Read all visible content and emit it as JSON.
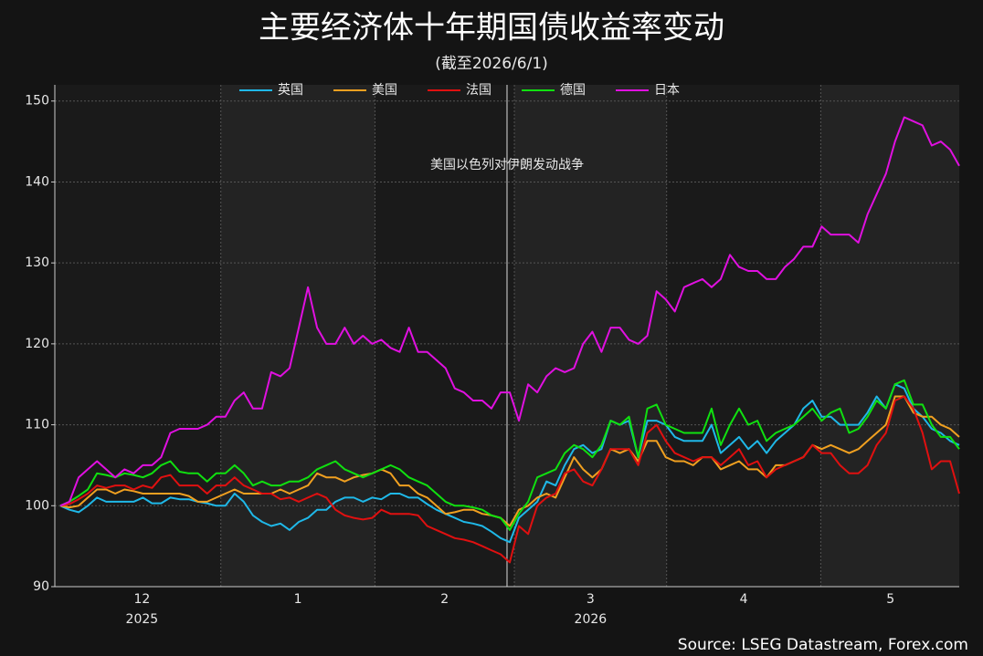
{
  "chart_data": {
    "type": "line",
    "title": "主要经济体十年期国债收益率变动",
    "subtitle": "(截至2026/6/1)",
    "source": "Source: LSEG Datastream, Forex.com",
    "legend": "top",
    "grid": true,
    "categories": [
      null,
      null,
      null,
      null,
      null,
      null,
      null,
      null,
      null,
      null,
      null,
      null,
      null,
      null,
      null,
      null,
      null,
      null,
      null,
      null,
      null,
      null,
      null,
      null,
      null,
      null,
      null,
      null,
      null,
      null,
      null,
      null,
      null,
      null,
      null,
      null,
      null,
      null,
      null,
      null,
      null,
      null,
      null,
      null,
      null,
      null,
      null,
      null,
      null,
      null,
      null,
      null,
      null,
      null,
      null,
      null,
      null,
      null,
      null,
      null,
      null,
      null,
      null,
      null,
      null,
      null,
      null,
      null,
      null,
      null,
      null,
      null,
      null,
      null,
      null,
      null,
      null,
      null,
      null,
      null,
      null,
      null,
      null,
      null,
      null,
      null,
      null,
      null,
      null,
      null,
      null,
      null,
      null,
      null,
      null,
      null,
      null,
      null,
      null
    ],
    "xticks": [
      {
        "value": 8.9,
        "label": "12"
      },
      {
        "value": 25.9,
        "label": "1"
      },
      {
        "value": 41.9,
        "label": "2"
      },
      {
        "value": 57.8,
        "label": "3"
      },
      {
        "value": 74.5,
        "label": "4"
      },
      {
        "value": 90.5,
        "label": "5"
      }
    ],
    "x_year_labels": [
      {
        "value": 8.9,
        "label": "2025"
      },
      {
        "value": 57.8,
        "label": "2026"
      }
    ],
    "month_bounds": [
      17.5,
      34.3,
      49.5,
      66.1,
      82.9
    ],
    "annotation": {
      "x": 48.7,
      "text": "美国以色列对伊朗发动战争"
    },
    "ylim": [
      90,
      152
    ],
    "yticks": [
      90,
      100,
      110,
      120,
      130,
      140,
      150
    ],
    "series": [
      {
        "name": "英国",
        "color": "#1fb8e8",
        "values": [
          100,
          99.5,
          99.2,
          100,
          101,
          100.5,
          100.5,
          100.5,
          100.5,
          101,
          100.3,
          100.3,
          101,
          100.8,
          100.8,
          100.5,
          100.3,
          100,
          100,
          101.5,
          100.5,
          98.8,
          98,
          97.5,
          97.8,
          97,
          98,
          98.5,
          99.5,
          99.5,
          100.5,
          101,
          101,
          100.5,
          101,
          100.8,
          101.5,
          101.5,
          101,
          101,
          100.2,
          99.5,
          99,
          98.5,
          98,
          97.8,
          97.5,
          96.8,
          96,
          95.5,
          98.5,
          99.5,
          100.5,
          103,
          102.5,
          105,
          107,
          107.5,
          106.5,
          107,
          110.5,
          110,
          110.5,
          106,
          110.5,
          110.5,
          110,
          108.5,
          108,
          108,
          108,
          110,
          106.5,
          107.5,
          108.5,
          107,
          108,
          106.5,
          108,
          109,
          110,
          112,
          113,
          111,
          111,
          110,
          110,
          110,
          111.5,
          113.5,
          112,
          115,
          114.5,
          112,
          111,
          109.5,
          109,
          108,
          107.5
        ]
      },
      {
        "name": "美国",
        "color": "#f0a020",
        "values": [
          100,
          99.8,
          100,
          101,
          102,
          102,
          101.5,
          102,
          101.8,
          101.5,
          101.5,
          101.5,
          101.5,
          101.5,
          101.2,
          100.5,
          100.5,
          101,
          101.5,
          102,
          101.5,
          101.5,
          101.5,
          101.5,
          102,
          101.5,
          102,
          102.5,
          104,
          103.5,
          103.5,
          103,
          103.5,
          103.8,
          104,
          104.5,
          104,
          102.5,
          102.5,
          101.5,
          101,
          100,
          99,
          99.2,
          99.5,
          99.5,
          99,
          98.8,
          98.5,
          97.5,
          99.5,
          100,
          101,
          101.5,
          101,
          103.5,
          106,
          104.5,
          103.5,
          104.5,
          107,
          106.5,
          107,
          105.5,
          108,
          108,
          106,
          105.5,
          105.5,
          105,
          106,
          106,
          104.5,
          105,
          105.5,
          104.5,
          104.5,
          103.5,
          105,
          105,
          105.5,
          106,
          107.5,
          107,
          107.5,
          107,
          106.5,
          107,
          108,
          109,
          110,
          113.5,
          113.5,
          111.5,
          111,
          111,
          110,
          109.5,
          108.5
        ]
      },
      {
        "name": "法国",
        "color": "#e01010",
        "values": [
          100,
          100.2,
          100.8,
          101.5,
          102.5,
          102.2,
          102.5,
          102.5,
          102,
          102.5,
          102.2,
          103.5,
          103.8,
          102.5,
          102.5,
          102.5,
          101.5,
          102.5,
          102.5,
          103.5,
          102.5,
          102,
          101.5,
          101.5,
          100.8,
          101,
          100.5,
          101,
          101.5,
          101,
          99.5,
          98.8,
          98.5,
          98.3,
          98.5,
          99.5,
          99,
          99,
          99,
          98.8,
          97.5,
          97,
          96.5,
          96,
          95.8,
          95.5,
          95,
          94.5,
          94,
          93,
          97.5,
          96.5,
          100,
          101,
          101.5,
          104,
          104.5,
          103,
          102.5,
          104.5,
          107,
          107,
          107,
          105,
          109,
          110,
          108,
          106.5,
          106,
          105.5,
          106,
          106,
          105,
          106,
          107,
          105,
          105.5,
          103.5,
          104.5,
          105,
          105.5,
          106,
          107.5,
          106.5,
          106.5,
          105,
          104,
          104,
          105,
          107.5,
          109,
          113,
          113.5,
          112,
          109,
          104.5,
          105.5,
          105.5,
          101.5
        ]
      },
      {
        "name": "德国",
        "color": "#10e010",
        "values": [
          100,
          100.5,
          101.2,
          102,
          104,
          103.8,
          103.5,
          104,
          103.8,
          103.5,
          104,
          105,
          105.5,
          104.2,
          104,
          104,
          103,
          104,
          104,
          105,
          104,
          102.5,
          103,
          102.5,
          102.5,
          103,
          103,
          103.5,
          104.5,
          105,
          105.5,
          104.5,
          104,
          103.5,
          104,
          104.5,
          105,
          104.5,
          103.5,
          103,
          102.5,
          101.5,
          100.5,
          100,
          100,
          99.8,
          99.5,
          98.8,
          98.5,
          97,
          99,
          100.5,
          103.5,
          104,
          104.5,
          106.5,
          107.5,
          107,
          106,
          107.5,
          110.5,
          110,
          111,
          106,
          112,
          112.5,
          110,
          109.5,
          109,
          109,
          109,
          112,
          107.5,
          110,
          112,
          110,
          110.5,
          108,
          109,
          109.5,
          110,
          111,
          112,
          110.5,
          111.5,
          112,
          109,
          109.5,
          111,
          113,
          112,
          115,
          115.5,
          112.5,
          112.5,
          110,
          108.5,
          108.5,
          107
        ]
      },
      {
        "name": "日本",
        "color": "#e010e0",
        "values": [
          100,
          100.5,
          103.5,
          104.5,
          105.5,
          104.5,
          103.5,
          104.5,
          104,
          105,
          105,
          106,
          109,
          109.5,
          109.5,
          109.5,
          110,
          111,
          111,
          113,
          114,
          112,
          112,
          116.5,
          116,
          117,
          122,
          127,
          122,
          120,
          120,
          122,
          120,
          121,
          120,
          120.5,
          119.5,
          119,
          122,
          119,
          119,
          118,
          117,
          114.5,
          114,
          113,
          113,
          112,
          114,
          114,
          110.5,
          115,
          114,
          116,
          117,
          116.5,
          117,
          120,
          121.5,
          119,
          122,
          122,
          120.5,
          120,
          121,
          126.5,
          125.5,
          124,
          127,
          127.5,
          128,
          127,
          128,
          131,
          129.5,
          129,
          129,
          128,
          128,
          129.5,
          130.5,
          132,
          132,
          134.5,
          133.5,
          133.5,
          133.5,
          132.5,
          136,
          138.5,
          141,
          145,
          148,
          147.5,
          147,
          144.5,
          145,
          144,
          142
        ]
      }
    ]
  }
}
